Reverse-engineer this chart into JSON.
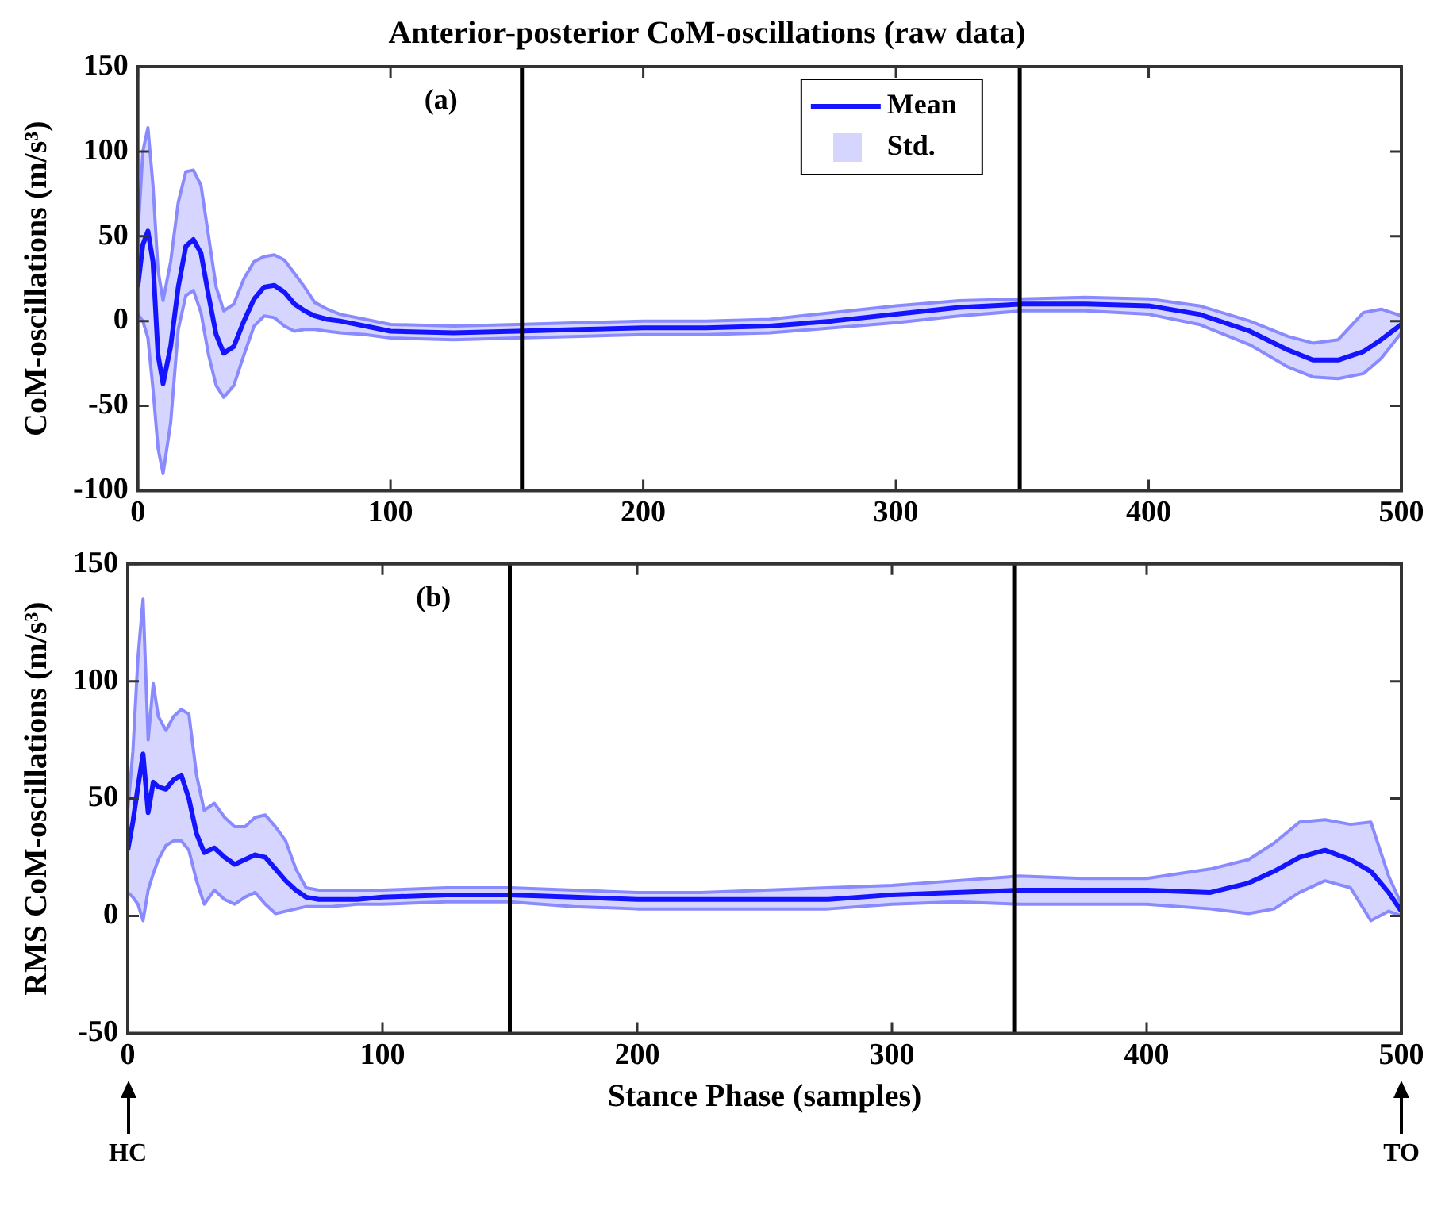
{
  "chart_data": [
    {
      "type": "line",
      "title": "Anterior-posterior CoM-oscillations (raw data)",
      "ylabel": "CoM-oscillations (m/s³)",
      "xlim": [
        0,
        500
      ],
      "xticks": [
        0,
        100,
        200,
        300,
        400,
        500
      ],
      "ylim": [
        -100,
        150
      ],
      "yticks": [
        -100,
        -50,
        0,
        50,
        100,
        150
      ],
      "legend": "top",
      "annotations": [
        "(a)",
        "Std."
      ],
      "ref_lines": [
        {
          "axis": "x",
          "value": 152,
          "color": "#000000"
        },
        {
          "axis": "x",
          "value": 349,
          "color": "#000000"
        }
      ],
      "x": [
        0,
        2,
        4,
        6,
        8,
        10,
        13,
        16,
        19,
        22,
        25,
        28,
        31,
        34,
        38,
        42,
        46,
        50,
        54,
        58,
        62,
        66,
        70,
        75,
        80,
        90,
        100,
        125,
        150,
        175,
        200,
        225,
        250,
        275,
        300,
        325,
        350,
        375,
        400,
        420,
        440,
        455,
        465,
        475,
        485,
        492,
        500
      ],
      "series": [
        {
          "name": "Mean",
          "color": "#1414ff",
          "values": [
            20,
            45,
            53,
            35,
            -20,
            -37,
            -15,
            20,
            44,
            48,
            40,
            15,
            -8,
            -19,
            -15,
            0,
            13,
            20,
            21,
            17,
            10,
            6,
            3,
            1,
            0,
            -3,
            -6,
            -7,
            -6,
            -5,
            -4,
            -4,
            -3,
            0,
            4,
            8,
            10,
            10,
            9,
            4,
            -6,
            -17,
            -23,
            -23,
            -18,
            -11,
            -2
          ],
          "upper": [
            50,
            100,
            114,
            80,
            30,
            12,
            35,
            70,
            88,
            89,
            80,
            50,
            20,
            6,
            10,
            25,
            35,
            38,
            39,
            36,
            28,
            20,
            11,
            7,
            4,
            1,
            -2,
            -3,
            -2,
            -1,
            0,
            0,
            1,
            5,
            9,
            12,
            13,
            14,
            13,
            9,
            0,
            -9,
            -13,
            -11,
            5,
            7,
            3
          ],
          "lower": [
            4,
            0,
            -10,
            -40,
            -75,
            -90,
            -60,
            -5,
            15,
            18,
            5,
            -20,
            -38,
            -45,
            -38,
            -20,
            -3,
            3,
            2,
            -3,
            -6,
            -5,
            -5,
            -6,
            -7,
            -8,
            -10,
            -11,
            -10,
            -9,
            -8,
            -8,
            -7,
            -4,
            -1,
            3,
            6,
            6,
            4,
            -2,
            -14,
            -27,
            -33,
            -34,
            -31,
            -22,
            -7
          ]
        },
        {
          "type": "line",
          "color": "#8a8aff",
          "values": [
            50,
            100,
            114,
            80,
            30,
            12,
            35,
            70,
            88,
            89,
            80,
            50,
            20,
            6,
            10,
            25,
            35,
            38,
            39,
            36,
            28,
            20,
            11,
            7,
            4,
            1,
            -2,
            -3,
            -2,
            -1,
            0,
            0,
            1,
            5,
            9,
            12,
            13,
            14,
            13,
            9,
            0,
            -9,
            -13,
            -11,
            5,
            7,
            3
          ]
        },
        {
          "type": "line",
          "color": "#8a8aff",
          "values": [
            4,
            0,
            -10,
            -40,
            -75,
            -90,
            -60,
            -5,
            15,
            18,
            5,
            -20,
            -38,
            -45,
            -38,
            -20,
            -3,
            3,
            2,
            -3,
            -6,
            -5,
            -5,
            -6,
            -7,
            -8,
            -10,
            -11,
            -10,
            -9,
            -8,
            -8,
            -7,
            -4,
            -1,
            3,
            6,
            6,
            4,
            -2,
            -14,
            -27,
            -33,
            -34,
            -31,
            -22,
            -7
          ]
        }
      ]
    },
    {
      "type": "line",
      "xlabel": "Stance Phase (samples)",
      "ylabel": "RMS CoM-oscillations (m/s³)",
      "xlim": [
        0,
        500
      ],
      "xticks": [
        0,
        100,
        200,
        300,
        400,
        500
      ],
      "ylim": [
        -50,
        150
      ],
      "yticks": [
        -50,
        0,
        50,
        100,
        150
      ],
      "annotations": [
        "(b)",
        "HC",
        "TO"
      ],
      "ref_lines": [
        {
          "axis": "x",
          "value": 150,
          "color": "#000000"
        },
        {
          "axis": "x",
          "value": 348,
          "color": "#000000"
        }
      ],
      "x": [
        0,
        2,
        4,
        6,
        8,
        10,
        12,
        15,
        18,
        21,
        24,
        27,
        30,
        34,
        38,
        42,
        46,
        50,
        54,
        58,
        62,
        66,
        70,
        75,
        80,
        90,
        100,
        125,
        150,
        175,
        200,
        225,
        250,
        275,
        300,
        325,
        350,
        375,
        400,
        425,
        440,
        450,
        460,
        470,
        480,
        488,
        495,
        500
      ],
      "series": [
        {
          "color": "#1414ff",
          "values": [
            28,
            40,
            55,
            69,
            44,
            57,
            55,
            54,
            58,
            60,
            50,
            35,
            27,
            29,
            25,
            22,
            24,
            26,
            25,
            20,
            15,
            11,
            8,
            7,
            7,
            7,
            8,
            9,
            9,
            8,
            7,
            7,
            7,
            7,
            9,
            10,
            11,
            11,
            11,
            10,
            14,
            19,
            25,
            28,
            24,
            19,
            10,
            2
          ],
          "upper": [
            45,
            70,
            110,
            135,
            75,
            99,
            85,
            79,
            85,
            88,
            86,
            60,
            45,
            48,
            42,
            38,
            38,
            42,
            43,
            38,
            32,
            20,
            12,
            11,
            11,
            11,
            11,
            12,
            12,
            11,
            10,
            10,
            11,
            12,
            13,
            15,
            17,
            16,
            16,
            20,
            24,
            31,
            40,
            41,
            39,
            40,
            17,
            5
          ],
          "lower": [
            10,
            8,
            5,
            -2,
            11,
            18,
            24,
            30,
            32,
            32,
            28,
            15,
            5,
            11,
            7,
            5,
            8,
            10,
            5,
            1,
            2,
            3,
            4,
            4,
            4,
            5,
            5,
            6,
            6,
            4,
            3,
            3,
            3,
            3,
            5,
            6,
            5,
            5,
            5,
            3,
            1,
            3,
            10,
            15,
            12,
            -2,
            2,
            0
          ]
        },
        {
          "type": "line",
          "color": "#8a8aff",
          "values": [
            45,
            70,
            110,
            135,
            75,
            99,
            85,
            79,
            85,
            88,
            86,
            60,
            45,
            48,
            42,
            38,
            38,
            42,
            43,
            38,
            32,
            20,
            12,
            11,
            11,
            11,
            11,
            12,
            12,
            11,
            10,
            10,
            11,
            12,
            13,
            15,
            17,
            16,
            16,
            20,
            24,
            31,
            40,
            41,
            39,
            40,
            17,
            5
          ]
        },
        {
          "type": "line",
          "color": "#8a8aff",
          "values": [
            10,
            8,
            5,
            -2,
            11,
            18,
            24,
            30,
            32,
            32,
            28,
            15,
            5,
            11,
            7,
            5,
            8,
            10,
            5,
            1,
            2,
            3,
            4,
            4,
            4,
            5,
            5,
            6,
            6,
            4,
            3,
            3,
            3,
            3,
            5,
            6,
            5,
            5,
            5,
            3,
            1,
            3,
            10,
            15,
            12,
            -2,
            2,
            0
          ]
        }
      ]
    }
  ]
}
